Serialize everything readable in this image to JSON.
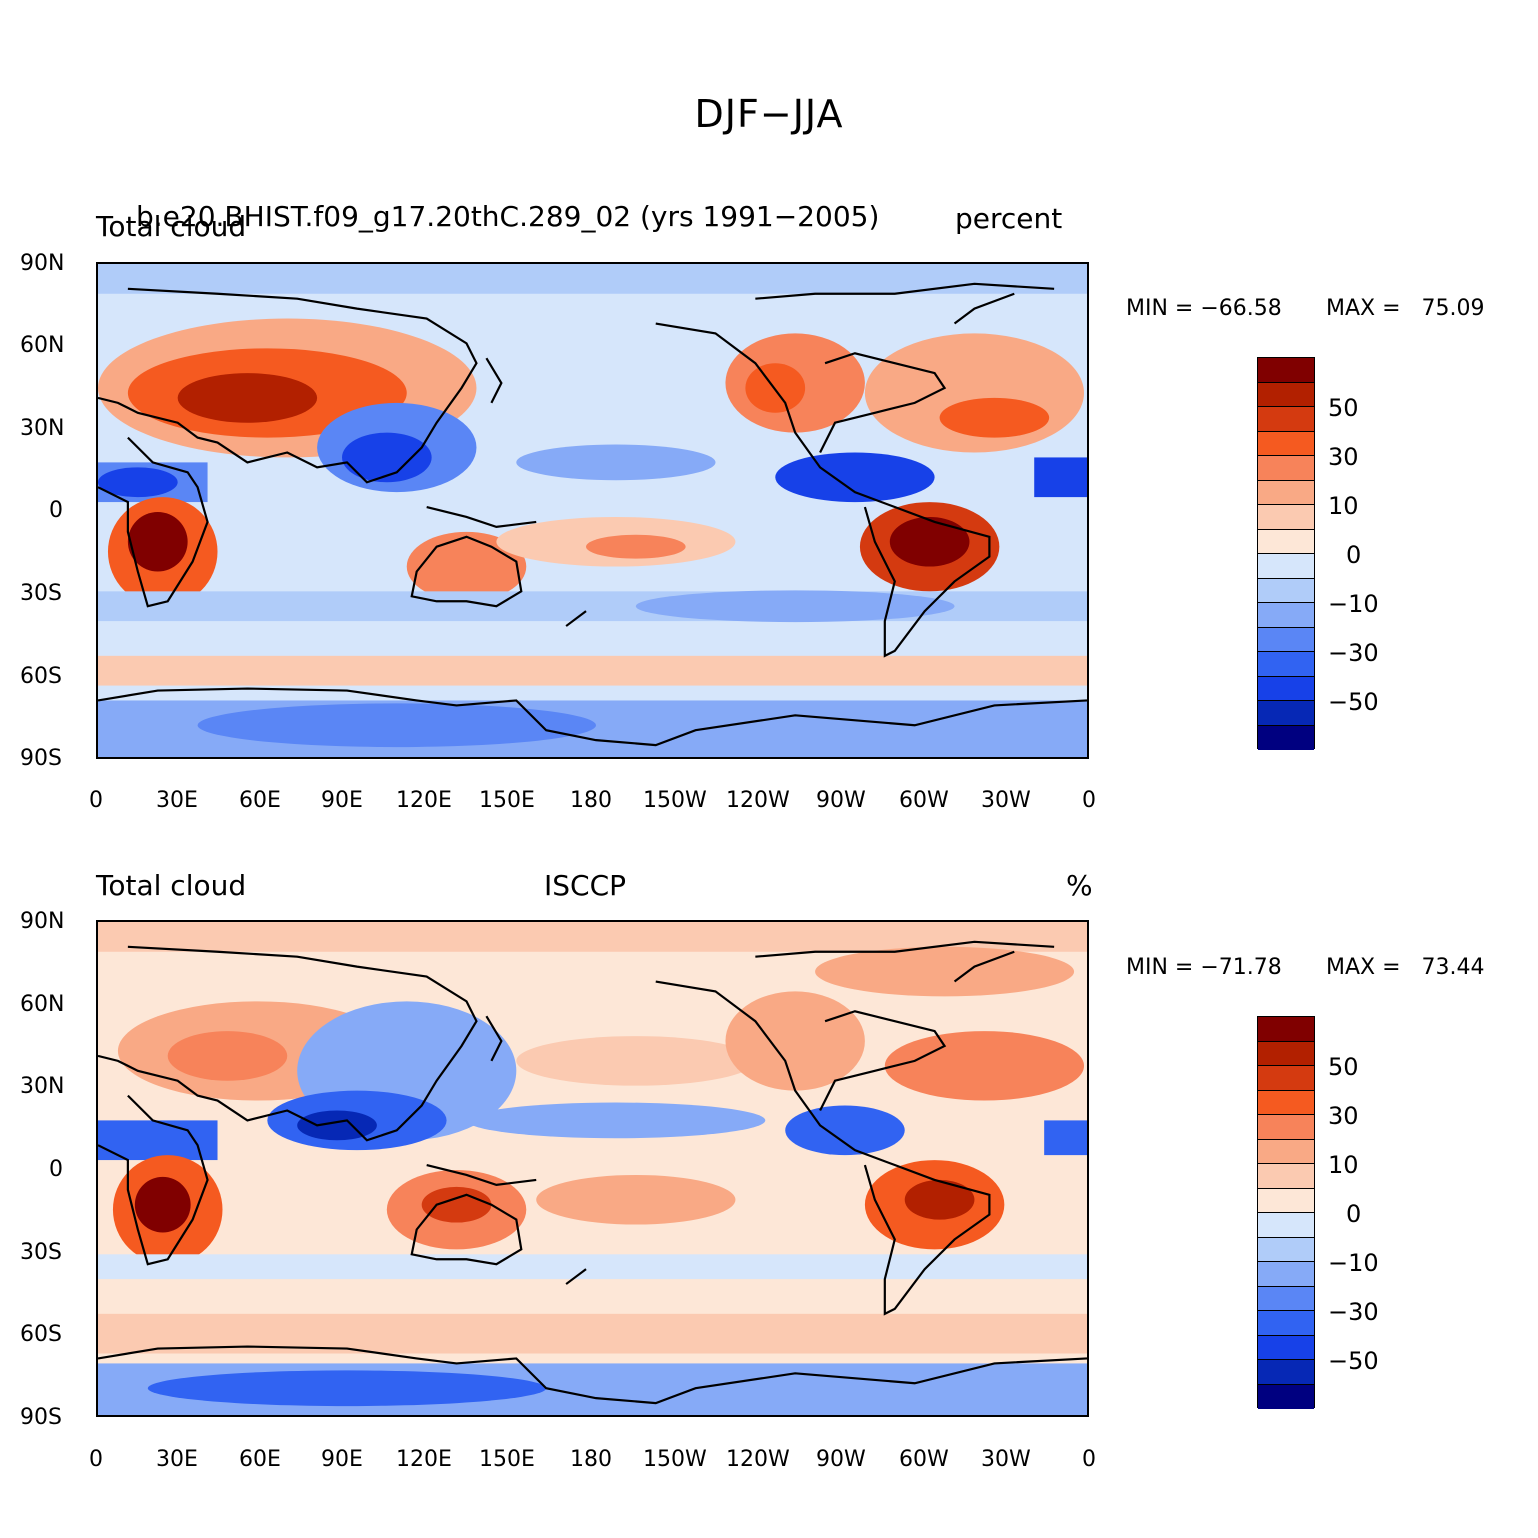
{
  "main_title": "DJF−JJA",
  "colors": {
    "scale": [
      "#800000",
      "#b22000",
      "#d43a10",
      "#f55a20",
      "#f7835a",
      "#f9a985",
      "#fbcab1",
      "#fde7d7",
      "#d6e6fb",
      "#b0ccf9",
      "#86aaf7",
      "#5a86f5",
      "#3163f2",
      "#1741e8",
      "#0628b5",
      "#000080"
    ],
    "land_outline": "#000000"
  },
  "panels": [
    {
      "left_title": "Total cloud",
      "center_title": "b.e20.BHIST.f09_g17.20thC.289_02 (yrs 1991−2005)",
      "right_title": "percent",
      "min_label": "MIN = −66.58",
      "max_label": "MAX =   75.09",
      "min": -66.58,
      "max": 75.09
    },
    {
      "left_title": "Total cloud",
      "center_title": "ISCCP",
      "right_title": "%",
      "min_label": "MIN = −71.78",
      "max_label": "MAX =   73.44",
      "min": -71.78,
      "max": 73.44
    }
  ],
  "lat_labels": [
    "90N",
    "60N",
    "30N",
    "0",
    "30S",
    "60S",
    "90S"
  ],
  "lon_labels": [
    "0",
    "30E",
    "60E",
    "90E",
    "120E",
    "150E",
    "180",
    "150W",
    "120W",
    "90W",
    "60W",
    "30W",
    "0"
  ],
  "colorbar_labels": [
    "50",
    "30",
    "10",
    "0",
    "−10",
    "−30",
    "−50"
  ]
}
